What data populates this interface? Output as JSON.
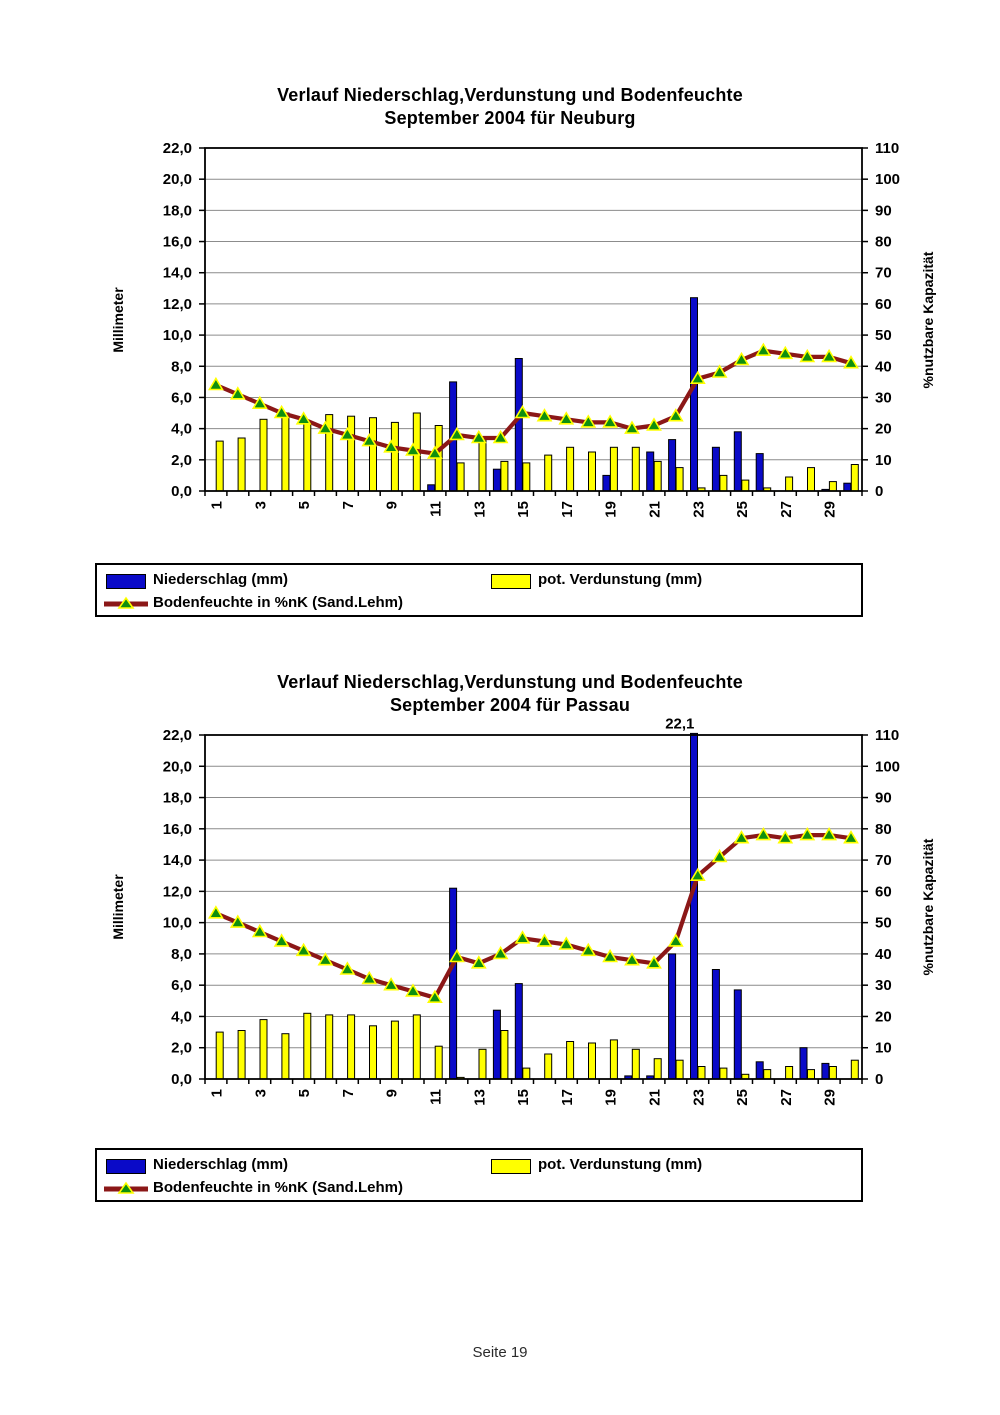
{
  "page": {
    "footer": "Seite 19"
  },
  "colors": {
    "niederschlag_bar": "#0a0ac8",
    "verdunstung_bar": "#ffff00",
    "bodenfeuchte_line": "#8b1717",
    "marker_fill": "#0e8f0e",
    "marker_stroke": "#ffff00",
    "gridline": "#8c8c8c",
    "axis": "#000000"
  },
  "axes": {
    "y_left_label": "Millimeter",
    "y_right_label": "%nutzbare Kapazität",
    "y_left_ticks": [
      "22,0",
      "20,0",
      "18,0",
      "16,0",
      "14,0",
      "12,0",
      "10,0",
      "8,0",
      "6,0",
      "4,0",
      "2,0",
      "0,0"
    ],
    "y_right_ticks": [
      "110",
      "100",
      "90",
      "80",
      "70",
      "60",
      "50",
      "40",
      "30",
      "20",
      "10",
      "0"
    ],
    "x_tick_labels": [
      "1",
      "3",
      "5",
      "7",
      "9",
      "11",
      "13",
      "15",
      "17",
      "19",
      "21",
      "23",
      "25",
      "27",
      "29"
    ],
    "y_left_max": 22,
    "y_right_max": 110
  },
  "legend": {
    "niederschlag": "Niederschlag (mm)",
    "verdunstung": "pot. Verdunstung (mm)",
    "bodenfeuchte": "Bodenfeuchte in %nK (Sand.Lehm)"
  },
  "chart_data": [
    {
      "type": "bar",
      "title_line1": "Verlauf Niederschlag,Verdunstung und Bodenfeuchte",
      "title_line2": "September 2004 für Neuburg",
      "x_range": [
        1,
        30
      ],
      "ylim_left": [
        0,
        22
      ],
      "ylim_right": [
        0,
        110
      ],
      "grid": true,
      "legend_position": "bottom",
      "annotation": null,
      "series": [
        {
          "name": "Niederschlag (mm)",
          "type": "bar",
          "axis": "left",
          "values": [
            0,
            0,
            0,
            0,
            0,
            0,
            0,
            0,
            0,
            0,
            0.4,
            7.0,
            0,
            1.4,
            8.5,
            0,
            0,
            0,
            1.0,
            0,
            2.5,
            3.3,
            12.4,
            2.8,
            3.8,
            2.4,
            0,
            0,
            0.1,
            0.5
          ]
        },
        {
          "name": "pot. Verdunstung (mm)",
          "type": "bar",
          "axis": "left",
          "values": [
            3.2,
            3.4,
            4.6,
            5.0,
            4.3,
            4.9,
            4.8,
            4.7,
            4.4,
            5.0,
            4.2,
            1.8,
            3.3,
            1.9,
            1.8,
            2.3,
            2.8,
            2.5,
            2.8,
            2.8,
            1.9,
            1.5,
            0.2,
            1.0,
            0.7,
            0.2,
            0.9,
            1.5,
            0.6,
            1.7
          ]
        },
        {
          "name": "Bodenfeuchte in %nK (Sand.Lehm)",
          "type": "line",
          "axis": "right",
          "values": [
            34,
            31,
            28,
            25,
            23,
            20,
            18,
            16,
            14,
            13,
            12,
            18,
            17,
            17,
            25,
            24,
            23,
            22,
            22,
            20,
            21,
            24,
            36,
            38,
            42,
            45,
            44,
            43,
            43,
            41
          ]
        }
      ]
    },
    {
      "type": "bar",
      "title_line1": "Verlauf Niederschlag,Verdunstung und Bodenfeuchte",
      "title_line2": "September 2004 für Passau",
      "x_range": [
        1,
        30
      ],
      "ylim_left": [
        0,
        22
      ],
      "ylim_right": [
        0,
        110
      ],
      "grid": true,
      "legend_position": "bottom",
      "annotation": {
        "text": "22,1",
        "day": 23
      },
      "series": [
        {
          "name": "Niederschlag (mm)",
          "type": "bar",
          "axis": "left",
          "values": [
            0,
            0,
            0,
            0,
            0,
            0,
            0,
            0,
            0,
            0,
            0,
            12.2,
            0,
            4.4,
            6.1,
            0,
            0,
            0,
            0,
            0.2,
            0.2,
            8.0,
            22.1,
            7.0,
            5.7,
            1.1,
            0,
            2.0,
            1.0,
            0
          ]
        },
        {
          "name": "pot. Verdunstung (mm)",
          "type": "bar",
          "axis": "left",
          "values": [
            3.0,
            3.1,
            3.8,
            2.9,
            4.2,
            4.1,
            4.1,
            3.4,
            3.7,
            4.1,
            2.1,
            0.1,
            1.9,
            3.1,
            0.7,
            1.6,
            2.4,
            2.3,
            2.5,
            1.9,
            1.3,
            1.2,
            0.8,
            0.7,
            0.3,
            0.6,
            0.8,
            0.6,
            0.8,
            1.2
          ]
        },
        {
          "name": "Bodenfeuchte in %nK (Sand.Lehm)",
          "type": "line",
          "axis": "right",
          "values": [
            53,
            50,
            47,
            44,
            41,
            38,
            35,
            32,
            30,
            28,
            26,
            39,
            37,
            40,
            45,
            44,
            43,
            41,
            39,
            38,
            37,
            44,
            65,
            71,
            77,
            78,
            77,
            78,
            78,
            77
          ]
        }
      ]
    }
  ]
}
